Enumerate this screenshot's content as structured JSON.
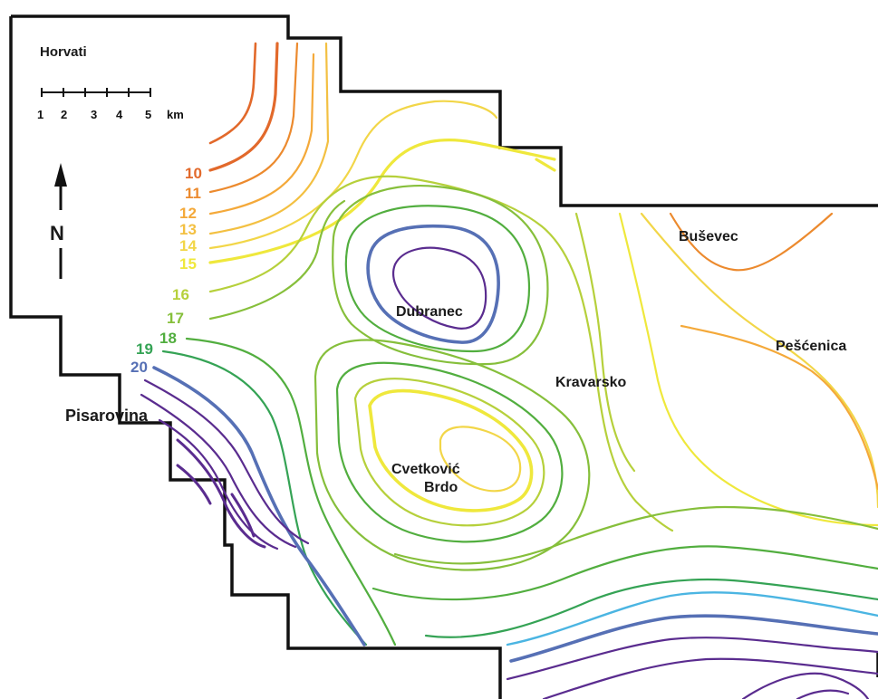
{
  "map_title": "Horvati",
  "scale_bar": {
    "ticks": [
      "1",
      "2",
      "3",
      "4",
      "5"
    ],
    "unit": "km"
  },
  "north_arrow": {
    "label": "N"
  },
  "places": {
    "busevec": "Buševec",
    "pescenica": "Pešćenica",
    "kravarsko": "Kravarsko",
    "dubranec": "Dubranec",
    "cvetkovic_line1": "Cvetković",
    "cvetkovic_line2": "Brdo",
    "pisarovina": "Pisarovina"
  },
  "contour_labels": [
    {
      "value": "10",
      "color": "#e2692b"
    },
    {
      "value": "11",
      "color": "#ec8a2e"
    },
    {
      "value": "12",
      "color": "#f4a93a"
    },
    {
      "value": "13",
      "color": "#f3c042"
    },
    {
      "value": "14",
      "color": "#f2d648"
    },
    {
      "value": "15",
      "color": "#efe83c"
    },
    {
      "value": "16",
      "color": "#b6d03b"
    },
    {
      "value": "17",
      "color": "#86bf3b"
    },
    {
      "value": "18",
      "color": "#52ae3f"
    },
    {
      "value": "19",
      "color": "#35a355"
    },
    {
      "value": "20",
      "color": "#5670b5"
    }
  ],
  "colors": {
    "c10": "#e2692b",
    "c11": "#ec8a2e",
    "c12": "#f4a93a",
    "c13": "#f3c042",
    "c14": "#f2d648",
    "c15": "#efe83c",
    "c16": "#b6d03b",
    "c17": "#86bf3b",
    "c18": "#52ae3f",
    "c19": "#35a355",
    "c20": "#5670b5",
    "c21": "#5a2c8f",
    "cyan": "#4bb5e2",
    "boundary": "#111111"
  }
}
